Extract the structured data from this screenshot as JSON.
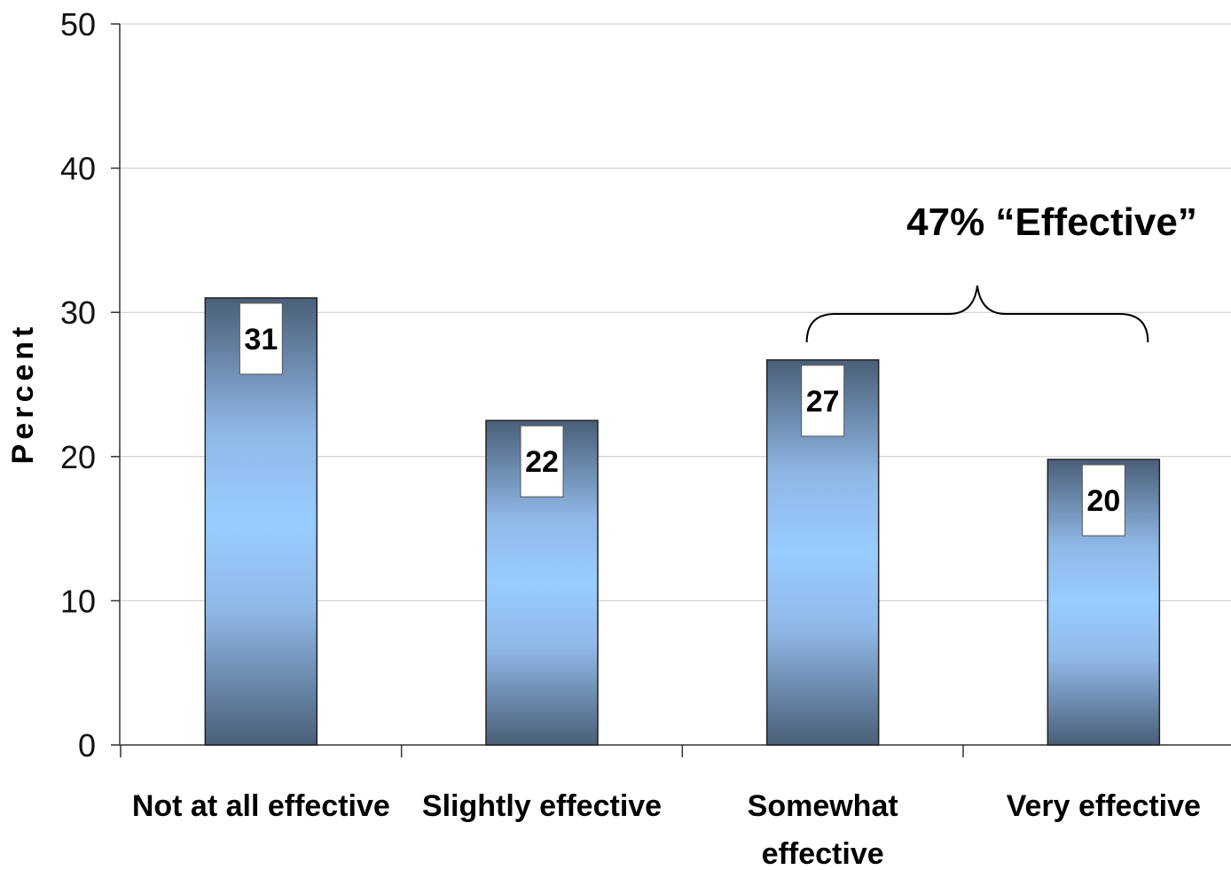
{
  "chart_data": {
    "type": "bar",
    "title": "",
    "xlabel": "",
    "ylabel": "Percent",
    "ylim": [
      0,
      50
    ],
    "yticks": [
      0,
      10,
      20,
      30,
      40,
      50
    ],
    "grid": true,
    "legend": "none",
    "categories": [
      [
        "Not at all effective"
      ],
      [
        "Slightly effective"
      ],
      [
        "Somewhat",
        "effective"
      ],
      [
        "Very effective"
      ]
    ],
    "values": [
      31,
      22.5,
      26.7,
      19.8
    ],
    "data_labels": [
      "31",
      "22",
      "27",
      "20"
    ],
    "annotation": {
      "text": "47% “Effective”",
      "spans_categories": [
        2,
        3
      ]
    },
    "colors": {
      "bar_dark": "#4a5f78",
      "bar_light": "#99ccff",
      "grid": "#c8c8c8",
      "axis": "#333333"
    }
  }
}
